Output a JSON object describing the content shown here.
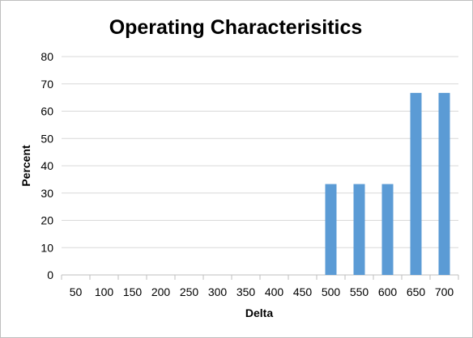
{
  "chart_data": {
    "type": "bar",
    "title": "Operating Characterisitics",
    "xlabel": "Delta",
    "ylabel": "Percent",
    "categories": [
      "50",
      "100",
      "150",
      "200",
      "250",
      "300",
      "350",
      "400",
      "450",
      "500",
      "550",
      "600",
      "650",
      "700"
    ],
    "series": [
      {
        "values": [
          0,
          0,
          0,
          0,
          0,
          0,
          0,
          0,
          0,
          33.3,
          33.3,
          33.3,
          66.7,
          66.7
        ]
      }
    ],
    "ylim": [
      0,
      80
    ],
    "yticks": [
      0,
      10,
      20,
      30,
      40,
      50,
      60,
      70,
      80
    ],
    "grid": true,
    "legend": "none",
    "colors": {
      "bar": "#5b9bd5",
      "grid": "#d9d9d9",
      "axis": "#bfbfbf"
    }
  }
}
